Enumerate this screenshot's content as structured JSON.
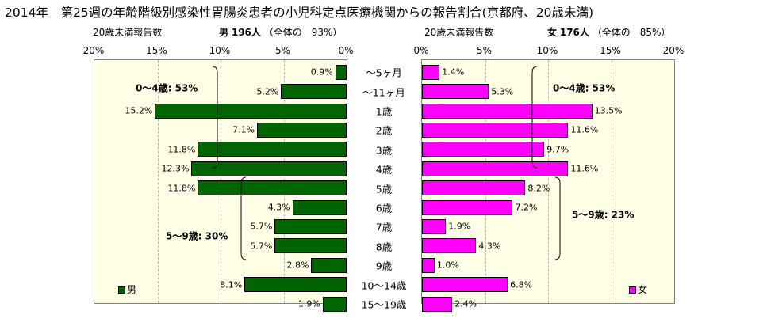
{
  "title": "2014年　第25週の年齢階級別感染性胃腸炎患者の小児科定点医療機関からの報告割合(京都府、20歳未満)",
  "male": {
    "sub_label": "20歳未満報告数",
    "sex_label": "男",
    "count": "196人",
    "share": "（全体の　93%）",
    "legend": "男",
    "color": "#006400",
    "group_labels": [
      "0～4歳: 53%",
      "5～9歳: 30%"
    ]
  },
  "female": {
    "sub_label": "20歳未満報告数",
    "sex_label": "女",
    "count": "176人",
    "share": "（全体の　85%）",
    "legend": "女",
    "color": "#ff00ff",
    "group_labels": [
      "0～4歳: 53%",
      "5～9歳: 23%"
    ]
  },
  "chart_data": {
    "type": "bar",
    "orientation": "horizontal-population-pyramid",
    "unit": "%",
    "xlim": [
      0,
      20
    ],
    "ticks": [
      "0%",
      "5%",
      "10%",
      "15%",
      "20%"
    ],
    "categories": [
      "～5ヶ月",
      "～11ヶ月",
      "1歳",
      "2歳",
      "3歳",
      "4歳",
      "5歳",
      "6歳",
      "7歳",
      "8歳",
      "9歳",
      "10～14歳",
      "15～19歳"
    ],
    "series": [
      {
        "name": "男",
        "values": [
          0.9,
          5.2,
          15.2,
          7.1,
          11.8,
          12.3,
          11.8,
          4.3,
          5.7,
          5.7,
          2.8,
          8.1,
          1.9
        ]
      },
      {
        "name": "女",
        "values": [
          1.4,
          5.3,
          13.5,
          11.6,
          9.7,
          11.6,
          8.2,
          7.2,
          1.9,
          4.3,
          1.0,
          6.8,
          2.4
        ]
      }
    ],
    "grid": true
  }
}
